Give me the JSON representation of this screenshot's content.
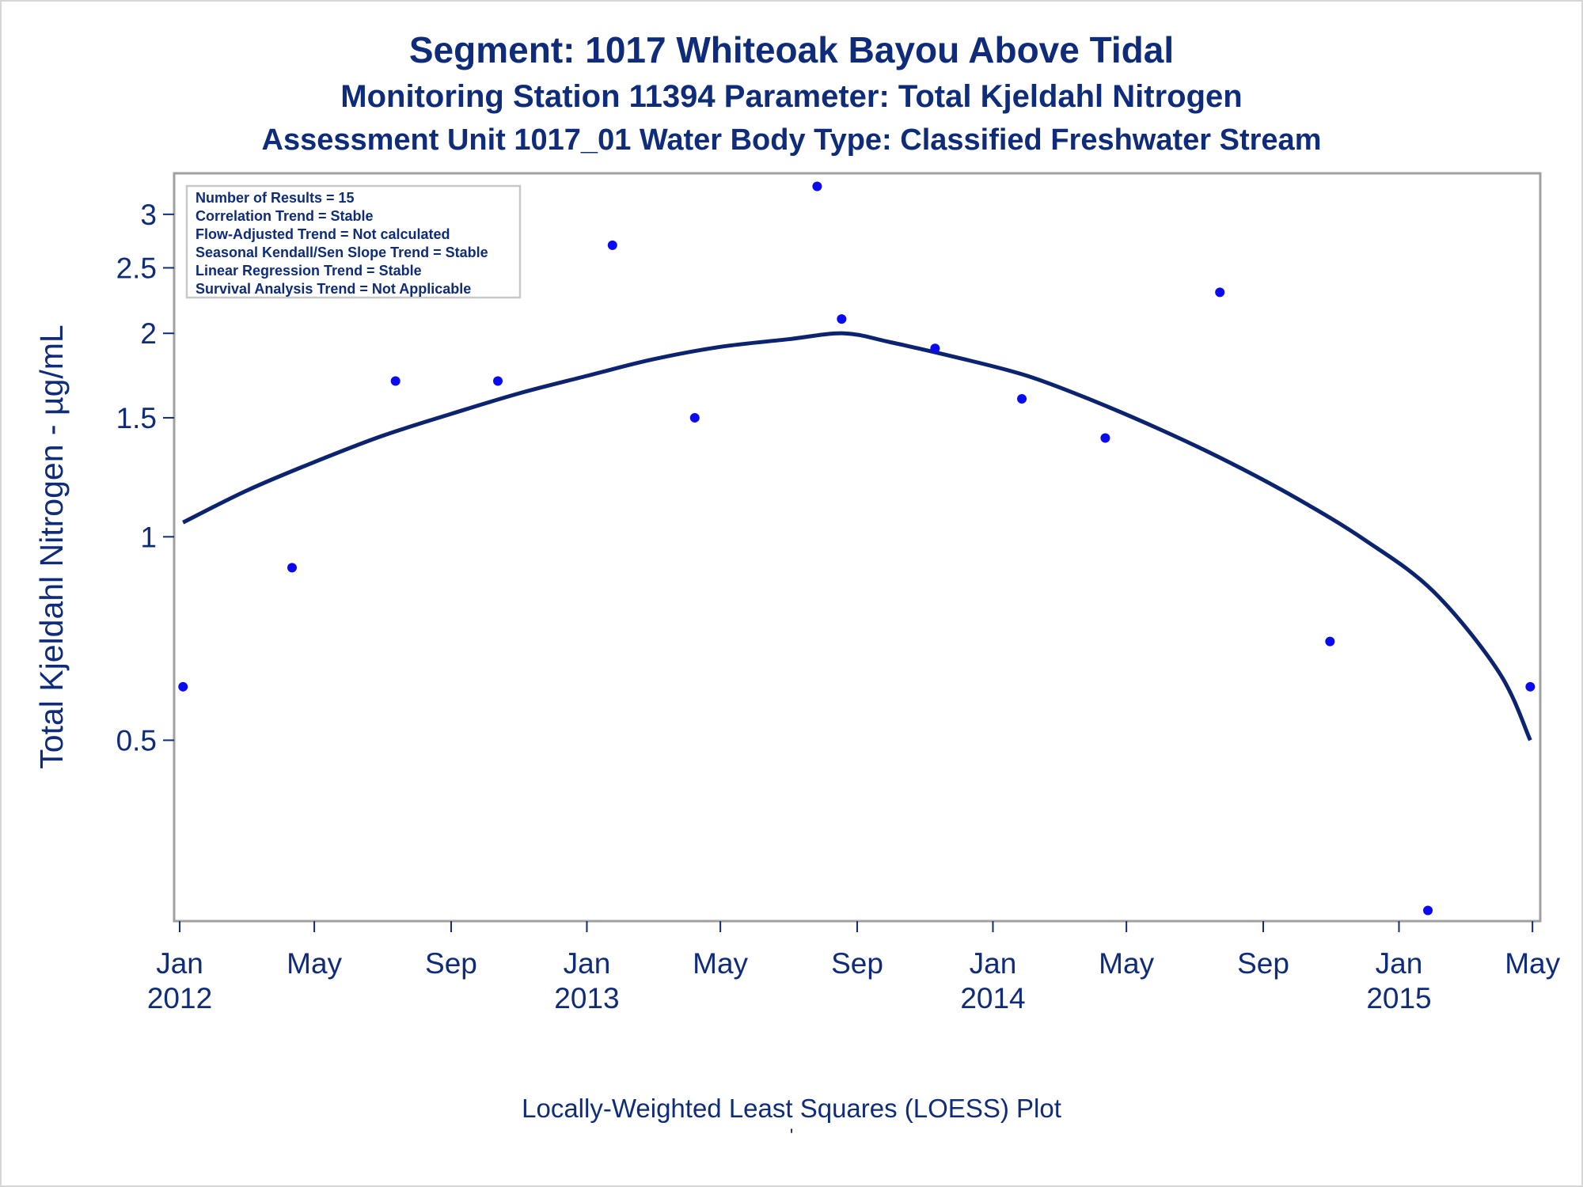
{
  "titles": {
    "line1": "Segment: 1017  Whiteoak Bayou Above Tidal",
    "line2": "Monitoring Station 11394 Parameter: Total Kjeldahl Nitrogen",
    "line3": "Assessment Unit 1017_01   Water Body Type: Classified Freshwater Stream"
  },
  "footnote": "Locally-Weighted Least Squares (LOESS) Plot",
  "footnote_mark": "'",
  "info_box": [
    "Number of Results = 15",
    "Correlation Trend = Stable",
    "Flow-Adjusted Trend = Not calculated",
    "Seasonal Kendall/Sen Slope Trend = Stable",
    "Linear Regression Trend = Stable",
    "Survival Analysis Trend = Not Applicable"
  ],
  "colors": {
    "text": "#0f2c7a",
    "points": "#0a0af0",
    "line": "#0c2470",
    "frame": "#a0a0a0",
    "info_border": "#c8c8c8"
  },
  "chart_data": {
    "type": "scatter",
    "title": "Segment: 1017  Whiteoak Bayou Above Tidal",
    "ylabel": "Total Kjeldahl Nitrogen -  µg/mL",
    "xlabel": "",
    "y_scale": "log",
    "ylim": [
      0.27,
      3.45
    ],
    "xlim": [
      "2011-12-27",
      "2015-05-08"
    ],
    "grid": false,
    "y_ticks": [
      0.5,
      1,
      1.5,
      2,
      2.5,
      3
    ],
    "y_tick_labels": [
      "0.5",
      "1",
      "1.5",
      "2",
      "2.5",
      "3"
    ],
    "x_ticks": [
      {
        "date": "2012-01-01",
        "month": "Jan",
        "year": "2012"
      },
      {
        "date": "2012-05-01",
        "month": "May",
        "year": ""
      },
      {
        "date": "2012-09-01",
        "month": "Sep",
        "year": ""
      },
      {
        "date": "2013-01-01",
        "month": "Jan",
        "year": "2013"
      },
      {
        "date": "2013-05-01",
        "month": "May",
        "year": ""
      },
      {
        "date": "2013-09-01",
        "month": "Sep",
        "year": ""
      },
      {
        "date": "2014-01-01",
        "month": "Jan",
        "year": "2014"
      },
      {
        "date": "2014-05-01",
        "month": "May",
        "year": ""
      },
      {
        "date": "2014-09-01",
        "month": "Sep",
        "year": ""
      },
      {
        "date": "2015-01-01",
        "month": "Jan",
        "year": "2015"
      },
      {
        "date": "2015-05-01",
        "month": "May",
        "year": ""
      }
    ],
    "series": [
      {
        "type": "scatter",
        "points": [
          {
            "x": "2012-01-04",
            "y": 0.6
          },
          {
            "x": "2012-04-11",
            "y": 0.9
          },
          {
            "x": "2012-07-13",
            "y": 1.7
          },
          {
            "x": "2012-10-13",
            "y": 1.7
          },
          {
            "x": "2013-01-24",
            "y": 2.7
          },
          {
            "x": "2013-04-08",
            "y": 1.5
          },
          {
            "x": "2013-07-27",
            "y": 3.3
          },
          {
            "x": "2013-08-18",
            "y": 2.1
          },
          {
            "x": "2013-11-10",
            "y": 1.9
          },
          {
            "x": "2014-01-27",
            "y": 1.6
          },
          {
            "x": "2014-04-12",
            "y": 1.4
          },
          {
            "x": "2014-07-24",
            "y": 2.3
          },
          {
            "x": "2014-10-31",
            "y": 0.7
          },
          {
            "x": "2015-01-27",
            "y": 0.28
          },
          {
            "x": "2015-04-29",
            "y": 0.6
          }
        ]
      },
      {
        "type": "line",
        "points": [
          {
            "x": "2012-01-04",
            "y": 1.05
          },
          {
            "x": "2012-03-01",
            "y": 1.17
          },
          {
            "x": "2012-05-01",
            "y": 1.29
          },
          {
            "x": "2012-07-01",
            "y": 1.41
          },
          {
            "x": "2012-09-01",
            "y": 1.52
          },
          {
            "x": "2012-11-01",
            "y": 1.63
          },
          {
            "x": "2013-01-01",
            "y": 1.73
          },
          {
            "x": "2013-03-01",
            "y": 1.83
          },
          {
            "x": "2013-05-01",
            "y": 1.91
          },
          {
            "x": "2013-07-01",
            "y": 1.96
          },
          {
            "x": "2013-08-20",
            "y": 2.0
          },
          {
            "x": "2013-10-01",
            "y": 1.94
          },
          {
            "x": "2013-12-01",
            "y": 1.84
          },
          {
            "x": "2014-02-01",
            "y": 1.73
          },
          {
            "x": "2014-04-01",
            "y": 1.59
          },
          {
            "x": "2014-06-01",
            "y": 1.44
          },
          {
            "x": "2014-08-01",
            "y": 1.29
          },
          {
            "x": "2014-10-01",
            "y": 1.14
          },
          {
            "x": "2014-12-01",
            "y": 0.99
          },
          {
            "x": "2015-02-01",
            "y": 0.83
          },
          {
            "x": "2015-04-01",
            "y": 0.63
          },
          {
            "x": "2015-04-29",
            "y": 0.5
          }
        ]
      }
    ]
  }
}
